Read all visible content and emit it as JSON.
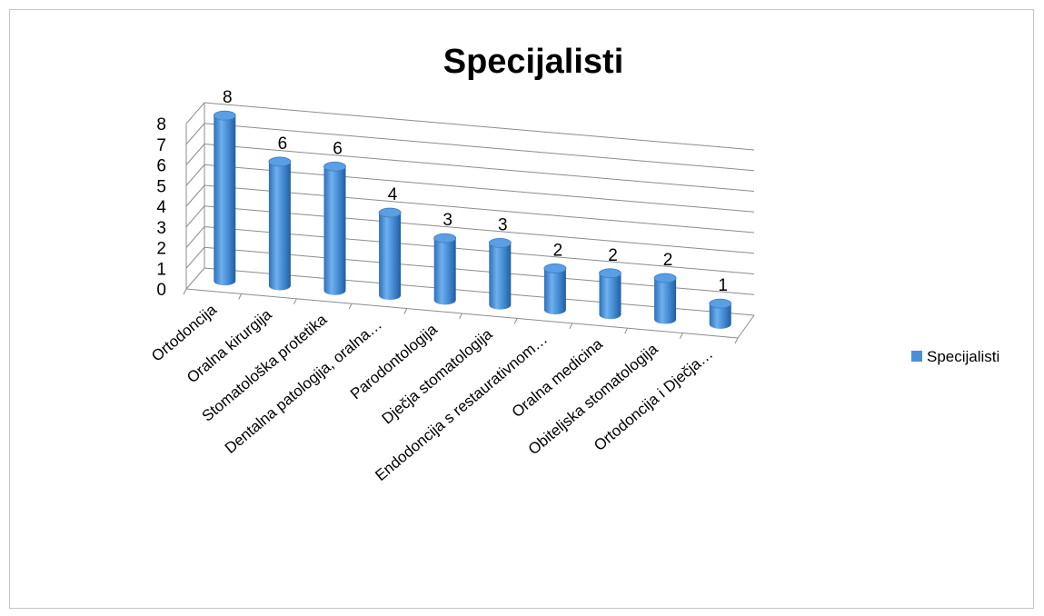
{
  "chart_data": {
    "type": "bar",
    "title": "Specijalisti",
    "categories": [
      "Ortodoncija",
      "Oralna kirurgija",
      "Stomatološka protetika",
      "Dentalna patologija, oralna…",
      "Parodontologija",
      "Dječja stomatologija",
      "Endodoncija s restaurativnom…",
      "Oralna medicina",
      "Obiteljska stomatologija",
      "Ortodoncija i Dječja…"
    ],
    "series": [
      {
        "name": "Specijalisti",
        "values": [
          8,
          6,
          6,
          4,
          3,
          3,
          2,
          2,
          2,
          1
        ],
        "color": "#4a8fd6"
      }
    ],
    "yticks": [
      "0",
      "1",
      "2",
      "3",
      "4",
      "5",
      "6",
      "7",
      "8"
    ],
    "ylim": [
      0,
      8
    ],
    "grid": true,
    "legend_position": "right",
    "style": "3d-cylinder"
  }
}
